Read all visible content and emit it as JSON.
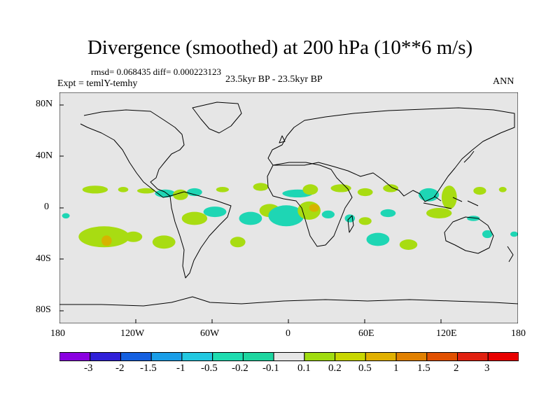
{
  "header": {
    "title": "Divergence (smoothed) at 200 hPa (10**6 m/s)",
    "stats": "rmsd= 0.068435  diff= 0.000223123",
    "experiment": "Expt = temlY-temhy",
    "period": "23.5kyr BP - 23.5kyr BP",
    "season": "ANN"
  },
  "axes": {
    "y_labels": [
      "80N",
      "40N",
      "0",
      "40S",
      "80S"
    ],
    "x_labels": [
      "180",
      "120W",
      "60W",
      "0",
      "60E",
      "120E",
      "180"
    ]
  },
  "colorbar": {
    "labels": [
      "-3",
      "-2",
      "-1.5",
      "-1",
      "-0.5",
      "-0.2",
      "-0.1",
      "0.1",
      "0.2",
      "0.5",
      "1",
      "1.5",
      "2",
      "3"
    ],
    "colors": [
      "#8a00e0",
      "#3020d8",
      "#1560e0",
      "#1a9ee8",
      "#22c8e0",
      "#1edcb0",
      "#1ed6a0",
      "#e6e6e6",
      "#a0dc10",
      "#c8d600",
      "#e0b000",
      "#e08000",
      "#e05000",
      "#e02010",
      "#e80000"
    ]
  },
  "map": {
    "background": "#e6e6e6",
    "patches": [
      {
        "lon": -152,
        "lat": 14,
        "rx": 10,
        "ry": 3,
        "class": "pos1"
      },
      {
        "lon": -130,
        "lat": 14,
        "rx": 4,
        "ry": 2,
        "class": "pos1"
      },
      {
        "lon": -112,
        "lat": 13,
        "rx": 7,
        "ry": 2,
        "class": "pos1"
      },
      {
        "lon": -97,
        "lat": 11,
        "rx": 8,
        "ry": 3,
        "class": "neg1"
      },
      {
        "lon": -85,
        "lat": 10,
        "rx": 6,
        "ry": 4,
        "class": "pos1"
      },
      {
        "lon": -74,
        "lat": 12,
        "rx": 6,
        "ry": 3,
        "class": "neg1"
      },
      {
        "lon": -52,
        "lat": 14,
        "rx": 5,
        "ry": 2,
        "class": "pos1"
      },
      {
        "lon": -22,
        "lat": 16,
        "rx": 6,
        "ry": 3,
        "class": "pos1"
      },
      {
        "lon": 7,
        "lat": 11,
        "rx": 12,
        "ry": 3,
        "class": "neg1"
      },
      {
        "lon": 17,
        "lat": 14,
        "rx": 6,
        "ry": 4,
        "class": "pos1"
      },
      {
        "lon": 41,
        "lat": 15,
        "rx": 8,
        "ry": 3,
        "class": "pos1"
      },
      {
        "lon": 60,
        "lat": 12,
        "rx": 6,
        "ry": 3,
        "class": "pos1"
      },
      {
        "lon": 80,
        "lat": 15,
        "rx": 6,
        "ry": 3,
        "class": "pos1"
      },
      {
        "lon": 110,
        "lat": 10,
        "rx": 8,
        "ry": 5,
        "class": "neg1"
      },
      {
        "lon": 126,
        "lat": 8,
        "rx": 6,
        "ry": 9,
        "class": "pos1"
      },
      {
        "lon": 150,
        "lat": 13,
        "rx": 5,
        "ry": 3,
        "class": "pos1"
      },
      {
        "lon": 168,
        "lat": 14,
        "rx": 3,
        "ry": 2,
        "class": "pos1"
      },
      {
        "lon": -175,
        "lat": -6,
        "rx": 3,
        "ry": 2,
        "class": "neg1"
      },
      {
        "lon": -145,
        "lat": -22,
        "rx": 20,
        "ry": 8,
        "class": "pos1"
      },
      {
        "lon": -143,
        "lat": -25,
        "rx": 4,
        "ry": 4,
        "class": "pos2"
      },
      {
        "lon": -122,
        "lat": -22,
        "rx": 7,
        "ry": 4,
        "class": "pos1"
      },
      {
        "lon": -98,
        "lat": -26,
        "rx": 9,
        "ry": 5,
        "class": "pos1"
      },
      {
        "lon": -74,
        "lat": -8,
        "rx": 10,
        "ry": 5,
        "class": "pos1"
      },
      {
        "lon": -58,
        "lat": -3,
        "rx": 9,
        "ry": 4,
        "class": "neg1"
      },
      {
        "lon": -30,
        "lat": -8,
        "rx": 9,
        "ry": 5,
        "class": "neg1"
      },
      {
        "lon": -40,
        "lat": -26,
        "rx": 6,
        "ry": 4,
        "class": "pos1"
      },
      {
        "lon": -15,
        "lat": -2,
        "rx": 8,
        "ry": 5,
        "class": "pos1"
      },
      {
        "lon": -2,
        "lat": -6,
        "rx": 14,
        "ry": 8,
        "class": "neg1"
      },
      {
        "lon": 16,
        "lat": -2,
        "rx": 9,
        "ry": 7,
        "class": "pos1"
      },
      {
        "lon": 20,
        "lat": 0,
        "rx": 4,
        "ry": 3,
        "class": "pos2"
      },
      {
        "lon": 31,
        "lat": -5,
        "rx": 5,
        "ry": 3,
        "class": "neg1"
      },
      {
        "lon": 48,
        "lat": -8,
        "rx": 4,
        "ry": 3,
        "class": "neg1"
      },
      {
        "lon": 60,
        "lat": -10,
        "rx": 5,
        "ry": 3,
        "class": "pos1"
      },
      {
        "lon": 78,
        "lat": -4,
        "rx": 6,
        "ry": 3,
        "class": "neg1"
      },
      {
        "lon": 70,
        "lat": -24,
        "rx": 9,
        "ry": 5,
        "class": "neg1"
      },
      {
        "lon": 94,
        "lat": -28,
        "rx": 7,
        "ry": 4,
        "class": "pos1"
      },
      {
        "lon": 118,
        "lat": -4,
        "rx": 10,
        "ry": 4,
        "class": "pos1"
      },
      {
        "lon": 145,
        "lat": -8,
        "rx": 5,
        "ry": 2,
        "class": "neg1"
      },
      {
        "lon": 156,
        "lat": -20,
        "rx": 4,
        "ry": 3,
        "class": "neg1"
      },
      {
        "lon": 177,
        "lat": -20,
        "rx": 3,
        "ry": 2,
        "class": "neg1"
      }
    ]
  }
}
